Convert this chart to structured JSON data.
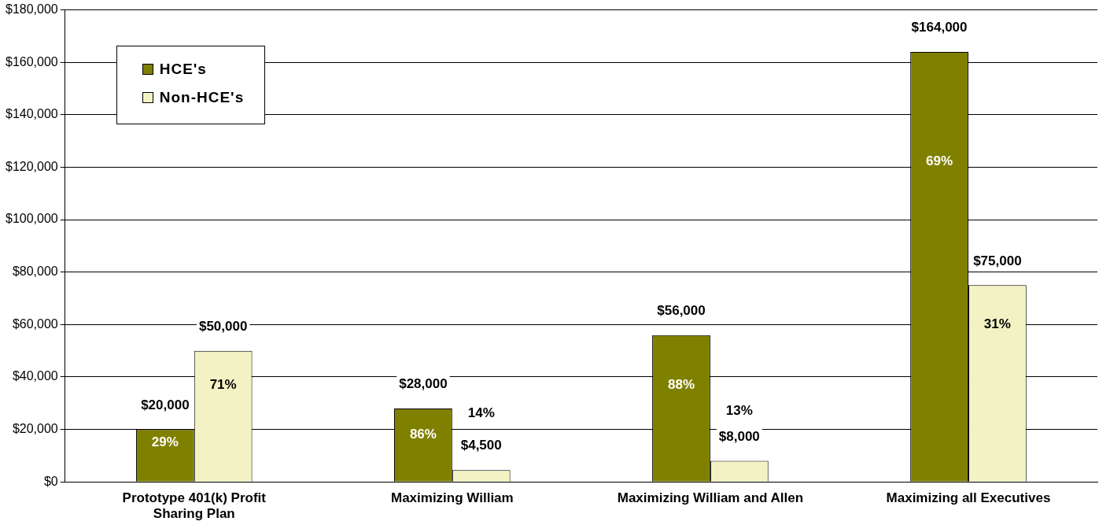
{
  "chart_data": {
    "type": "bar",
    "categories": [
      "Prototype 401(k) Profit Sharing Plan",
      "Maximizing William",
      "Maximizing William and Allen",
      "Maximizing all Executives"
    ],
    "series": [
      {
        "name": "HCE's",
        "color": "#808000",
        "values": [
          20000,
          28000,
          56000,
          164000
        ],
        "value_labels": [
          "$20,000",
          "$28,000",
          "$56,000",
          "$164,000"
        ]
      },
      {
        "name": "Non-HCE's",
        "color": "#f2f2c4",
        "values": [
          50000,
          4500,
          8000,
          75000
        ],
        "value_labels": [
          "$50,000",
          "$4,500",
          "$8,000",
          "$75,000"
        ]
      }
    ],
    "annotations": [
      {
        "text": "29%",
        "x": "Prototype 401(k) Profit Sharing Plan",
        "y": 15000
      },
      {
        "text": "71%",
        "x": "Prototype 401(k) Profit Sharing Plan",
        "y": 37000
      },
      {
        "text": "86%",
        "x": "Maximizing William",
        "y": 18000
      },
      {
        "text": "14%",
        "x": "Maximizing William",
        "y": 26000
      },
      {
        "text": "88%",
        "x": "Maximizing William and Allen",
        "y": 37000
      },
      {
        "text": "13%",
        "x": "Maximizing William and Allen",
        "y": 27000
      },
      {
        "text": "69%",
        "x": "Maximizing all Executives",
        "y": 122000
      },
      {
        "text": "31%",
        "x": "Maximizing all Executives",
        "y": 60000
      }
    ],
    "ylim": [
      0,
      180000
    ],
    "yticks": [
      {
        "value": 0,
        "label": "$0"
      },
      {
        "value": 20000,
        "label": "$20,000"
      },
      {
        "value": 40000,
        "label": "$40,000"
      },
      {
        "value": 60000,
        "label": "$60,000"
      },
      {
        "value": 80000,
        "label": "$80,000"
      },
      {
        "value": 100000,
        "label": "$100,000"
      },
      {
        "value": 120000,
        "label": "$120,000"
      },
      {
        "value": 140000,
        "label": "$140,000"
      },
      {
        "value": 160000,
        "label": "$160,000"
      },
      {
        "value": 180000,
        "label": "$180,000"
      }
    ],
    "grid": "y",
    "legend": "top left"
  }
}
